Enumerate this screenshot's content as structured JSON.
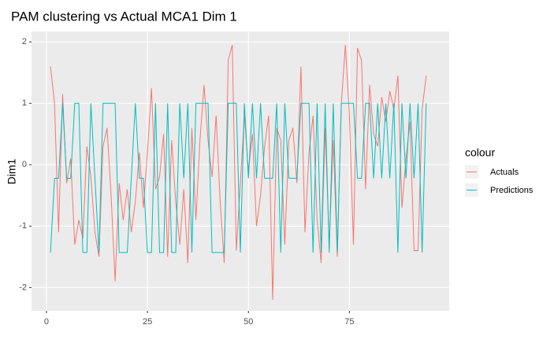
{
  "chart_data": {
    "type": "line",
    "title": "PAM clustering vs Actual MCA1 Dim 1",
    "y_label": "Dim1",
    "legend_title": "colour",
    "legend_position": "right",
    "grid": true,
    "x": [
      1,
      2,
      3,
      4,
      5,
      6,
      7,
      8,
      9,
      10,
      11,
      12,
      13,
      14,
      15,
      16,
      17,
      18,
      19,
      20,
      21,
      22,
      23,
      24,
      25,
      26,
      27,
      28,
      29,
      30,
      31,
      32,
      33,
      34,
      35,
      36,
      37,
      38,
      39,
      40,
      41,
      42,
      43,
      44,
      45,
      46,
      47,
      48,
      49,
      50,
      51,
      52,
      53,
      54,
      55,
      56,
      57,
      58,
      59,
      60,
      61,
      62,
      63,
      64,
      65,
      66,
      67,
      68,
      69,
      70,
      71,
      72,
      73,
      74,
      75,
      76,
      77,
      78,
      79,
      80,
      81,
      82,
      83,
      84,
      85,
      86,
      87,
      88,
      89,
      90,
      91,
      92,
      93,
      94
    ],
    "series": [
      {
        "name": "Actuals",
        "color": "#F8766D",
        "values": [
          1.6,
          1.0,
          -1.1,
          1.15,
          -0.3,
          0.1,
          -1.3,
          -0.9,
          -1.2,
          0.3,
          -0.2,
          -1.1,
          -1.5,
          0.3,
          0.6,
          -0.5,
          -1.9,
          -0.3,
          -0.9,
          -0.4,
          -1.1,
          -0.6,
          0.2,
          -0.7,
          0.2,
          1.25,
          -0.4,
          -0.2,
          0.5,
          -1.5,
          0.4,
          -0.6,
          -1.3,
          -0.4,
          -1.6,
          0.6,
          -0.9,
          0.4,
          1.3,
          0.4,
          -0.2,
          0.8,
          -0.6,
          -1.6,
          1.7,
          1.95,
          -1.4,
          -0.3,
          0.8,
          -0.1,
          0.5,
          -1.0,
          -0.5,
          0.3,
          0.8,
          -2.2,
          0.6,
          0.4,
          -1.3,
          0.4,
          0.6,
          -0.3,
          1.6,
          -1.1,
          0.2,
          0.8,
          -0.9,
          -1.6,
          0.6,
          -1.3,
          0.4,
          -1.5,
          1.0,
          1.95,
          0.8,
          -1.3,
          1.9,
          1.7,
          -0.4,
          1.3,
          0.5,
          0.3,
          1.1,
          0.7,
          1.2,
          0.9,
          1.45,
          -0.7,
          0.1,
          0.7,
          -1.4,
          -1.4,
          0.9,
          1.45
        ]
      },
      {
        "name": "Predictions",
        "color": "#00BFC4",
        "values": [
          -1.43,
          -0.22,
          -0.22,
          1,
          -0.22,
          -0.22,
          1,
          1,
          -1.43,
          -1.43,
          1,
          -0.22,
          -1.43,
          1,
          1,
          1,
          1,
          -1.43,
          -1.43,
          -1.43,
          -0.22,
          1,
          -0.22,
          -0.22,
          -1.43,
          -1.43,
          1,
          -1.43,
          -1.43,
          1,
          -1.43,
          -1.43,
          1,
          -0.22,
          1,
          -1.43,
          1,
          1,
          1,
          1,
          -1.43,
          -1.43,
          -1.43,
          -1.43,
          1,
          1,
          1,
          -1.43,
          1,
          -0.22,
          1,
          -0.22,
          1,
          -0.22,
          -0.22,
          -0.22,
          1,
          -1.43,
          1,
          -0.22,
          -0.22,
          -0.22,
          1,
          1,
          1,
          -1.43,
          1,
          -1.43,
          1,
          -1.43,
          1,
          -1.43,
          1,
          1,
          1,
          1,
          -0.22,
          -0.22,
          1,
          1,
          -0.22,
          1,
          -0.22,
          1,
          -0.22,
          1,
          -1.43,
          1,
          -0.22,
          1,
          -0.22,
          1,
          -1.43,
          1
        ]
      }
    ],
    "xlim": [
      -3.7,
      99.7
    ],
    "xticks": [
      0,
      25,
      50,
      75
    ],
    "ylim": [
      -2.38,
      2.17
    ],
    "yticks": [
      -2,
      -1,
      0,
      1,
      2
    ]
  }
}
